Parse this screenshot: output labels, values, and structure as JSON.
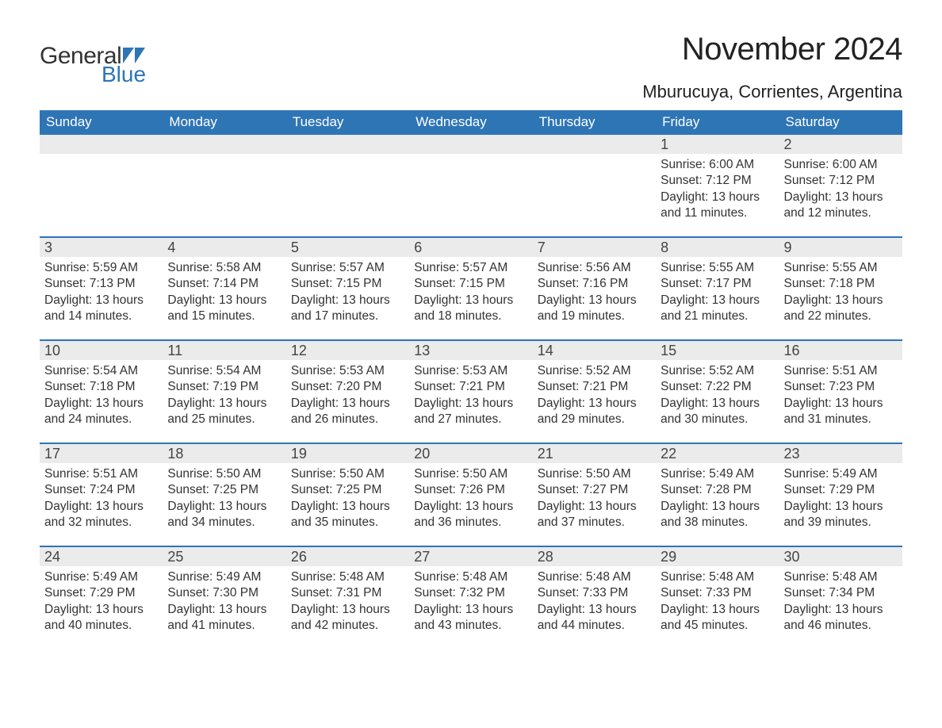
{
  "logo": {
    "text_general": "General",
    "text_blue": "Blue",
    "flag_color": "#2e75b6"
  },
  "header": {
    "month_title": "November 2024",
    "location": "Mburucuya, Corrientes, Argentina",
    "title_fontsize": 40,
    "location_fontsize": 22,
    "title_color": "#222222"
  },
  "calendar": {
    "dow_bg": "#2e75b6",
    "dow_fg": "#ffffff",
    "row_divider_color": "#2e75b6",
    "daynum_bg": "#ebebeb",
    "text_color": "#333333",
    "days_of_week": [
      "Sunday",
      "Monday",
      "Tuesday",
      "Wednesday",
      "Thursday",
      "Friday",
      "Saturday"
    ],
    "weeks": [
      [
        {
          "n": "",
          "sunrise": "",
          "sunset": "",
          "daylight": ""
        },
        {
          "n": "",
          "sunrise": "",
          "sunset": "",
          "daylight": ""
        },
        {
          "n": "",
          "sunrise": "",
          "sunset": "",
          "daylight": ""
        },
        {
          "n": "",
          "sunrise": "",
          "sunset": "",
          "daylight": ""
        },
        {
          "n": "",
          "sunrise": "",
          "sunset": "",
          "daylight": ""
        },
        {
          "n": "1",
          "sunrise": "Sunrise: 6:00 AM",
          "sunset": "Sunset: 7:12 PM",
          "daylight": "Daylight: 13 hours and 11 minutes."
        },
        {
          "n": "2",
          "sunrise": "Sunrise: 6:00 AM",
          "sunset": "Sunset: 7:12 PM",
          "daylight": "Daylight: 13 hours and 12 minutes."
        }
      ],
      [
        {
          "n": "3",
          "sunrise": "Sunrise: 5:59 AM",
          "sunset": "Sunset: 7:13 PM",
          "daylight": "Daylight: 13 hours and 14 minutes."
        },
        {
          "n": "4",
          "sunrise": "Sunrise: 5:58 AM",
          "sunset": "Sunset: 7:14 PM",
          "daylight": "Daylight: 13 hours and 15 minutes."
        },
        {
          "n": "5",
          "sunrise": "Sunrise: 5:57 AM",
          "sunset": "Sunset: 7:15 PM",
          "daylight": "Daylight: 13 hours and 17 minutes."
        },
        {
          "n": "6",
          "sunrise": "Sunrise: 5:57 AM",
          "sunset": "Sunset: 7:15 PM",
          "daylight": "Daylight: 13 hours and 18 minutes."
        },
        {
          "n": "7",
          "sunrise": "Sunrise: 5:56 AM",
          "sunset": "Sunset: 7:16 PM",
          "daylight": "Daylight: 13 hours and 19 minutes."
        },
        {
          "n": "8",
          "sunrise": "Sunrise: 5:55 AM",
          "sunset": "Sunset: 7:17 PM",
          "daylight": "Daylight: 13 hours and 21 minutes."
        },
        {
          "n": "9",
          "sunrise": "Sunrise: 5:55 AM",
          "sunset": "Sunset: 7:18 PM",
          "daylight": "Daylight: 13 hours and 22 minutes."
        }
      ],
      [
        {
          "n": "10",
          "sunrise": "Sunrise: 5:54 AM",
          "sunset": "Sunset: 7:18 PM",
          "daylight": "Daylight: 13 hours and 24 minutes."
        },
        {
          "n": "11",
          "sunrise": "Sunrise: 5:54 AM",
          "sunset": "Sunset: 7:19 PM",
          "daylight": "Daylight: 13 hours and 25 minutes."
        },
        {
          "n": "12",
          "sunrise": "Sunrise: 5:53 AM",
          "sunset": "Sunset: 7:20 PM",
          "daylight": "Daylight: 13 hours and 26 minutes."
        },
        {
          "n": "13",
          "sunrise": "Sunrise: 5:53 AM",
          "sunset": "Sunset: 7:21 PM",
          "daylight": "Daylight: 13 hours and 27 minutes."
        },
        {
          "n": "14",
          "sunrise": "Sunrise: 5:52 AM",
          "sunset": "Sunset: 7:21 PM",
          "daylight": "Daylight: 13 hours and 29 minutes."
        },
        {
          "n": "15",
          "sunrise": "Sunrise: 5:52 AM",
          "sunset": "Sunset: 7:22 PM",
          "daylight": "Daylight: 13 hours and 30 minutes."
        },
        {
          "n": "16",
          "sunrise": "Sunrise: 5:51 AM",
          "sunset": "Sunset: 7:23 PM",
          "daylight": "Daylight: 13 hours and 31 minutes."
        }
      ],
      [
        {
          "n": "17",
          "sunrise": "Sunrise: 5:51 AM",
          "sunset": "Sunset: 7:24 PM",
          "daylight": "Daylight: 13 hours and 32 minutes."
        },
        {
          "n": "18",
          "sunrise": "Sunrise: 5:50 AM",
          "sunset": "Sunset: 7:25 PM",
          "daylight": "Daylight: 13 hours and 34 minutes."
        },
        {
          "n": "19",
          "sunrise": "Sunrise: 5:50 AM",
          "sunset": "Sunset: 7:25 PM",
          "daylight": "Daylight: 13 hours and 35 minutes."
        },
        {
          "n": "20",
          "sunrise": "Sunrise: 5:50 AM",
          "sunset": "Sunset: 7:26 PM",
          "daylight": "Daylight: 13 hours and 36 minutes."
        },
        {
          "n": "21",
          "sunrise": "Sunrise: 5:50 AM",
          "sunset": "Sunset: 7:27 PM",
          "daylight": "Daylight: 13 hours and 37 minutes."
        },
        {
          "n": "22",
          "sunrise": "Sunrise: 5:49 AM",
          "sunset": "Sunset: 7:28 PM",
          "daylight": "Daylight: 13 hours and 38 minutes."
        },
        {
          "n": "23",
          "sunrise": "Sunrise: 5:49 AM",
          "sunset": "Sunset: 7:29 PM",
          "daylight": "Daylight: 13 hours and 39 minutes."
        }
      ],
      [
        {
          "n": "24",
          "sunrise": "Sunrise: 5:49 AM",
          "sunset": "Sunset: 7:29 PM",
          "daylight": "Daylight: 13 hours and 40 minutes."
        },
        {
          "n": "25",
          "sunrise": "Sunrise: 5:49 AM",
          "sunset": "Sunset: 7:30 PM",
          "daylight": "Daylight: 13 hours and 41 minutes."
        },
        {
          "n": "26",
          "sunrise": "Sunrise: 5:48 AM",
          "sunset": "Sunset: 7:31 PM",
          "daylight": "Daylight: 13 hours and 42 minutes."
        },
        {
          "n": "27",
          "sunrise": "Sunrise: 5:48 AM",
          "sunset": "Sunset: 7:32 PM",
          "daylight": "Daylight: 13 hours and 43 minutes."
        },
        {
          "n": "28",
          "sunrise": "Sunrise: 5:48 AM",
          "sunset": "Sunset: 7:33 PM",
          "daylight": "Daylight: 13 hours and 44 minutes."
        },
        {
          "n": "29",
          "sunrise": "Sunrise: 5:48 AM",
          "sunset": "Sunset: 7:33 PM",
          "daylight": "Daylight: 13 hours and 45 minutes."
        },
        {
          "n": "30",
          "sunrise": "Sunrise: 5:48 AM",
          "sunset": "Sunset: 7:34 PM",
          "daylight": "Daylight: 13 hours and 46 minutes."
        }
      ]
    ]
  }
}
